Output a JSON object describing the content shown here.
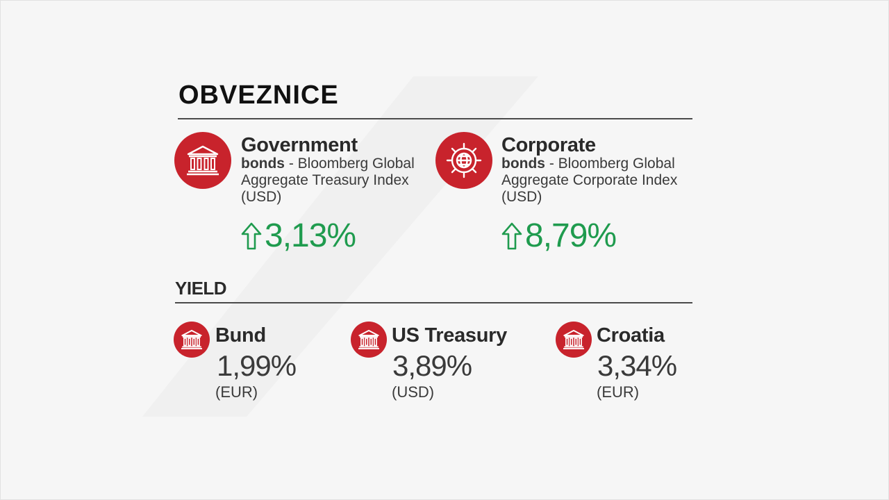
{
  "header": {
    "title": "OBVEZNICE"
  },
  "bonds": [
    {
      "name": "Government",
      "desc_bold": "bonds",
      "desc_rest": " - Bloomberg Global Aggregate Treasury Index (USD)",
      "change": "3,13%",
      "icon": "bank-building-icon",
      "trend_icon": "arrow-up-icon"
    },
    {
      "name": "Corporate",
      "desc_bold": "bonds",
      "desc_rest": " - Bloomberg Global Aggregate Corporate Index (USD)",
      "change": "8,79%",
      "icon": "gear-globe-icon",
      "trend_icon": "arrow-up-icon"
    }
  ],
  "yield": {
    "label": "YIELD",
    "items": [
      {
        "name": "Bund",
        "value": "1,99%",
        "currency": "(EUR)",
        "icon": "bank-building-icon"
      },
      {
        "name": "US Treasury",
        "value": "3,89%",
        "currency": "(USD)",
        "icon": "bank-building-icon"
      },
      {
        "name": "Croatia",
        "value": "3,34%",
        "currency": "(EUR)",
        "icon": "bank-building-icon"
      }
    ]
  },
  "colors": {
    "accent": "#c8232c",
    "positive": "#1f9b4e",
    "rule": "#4a4a4a",
    "background": "#f6f6f6"
  }
}
